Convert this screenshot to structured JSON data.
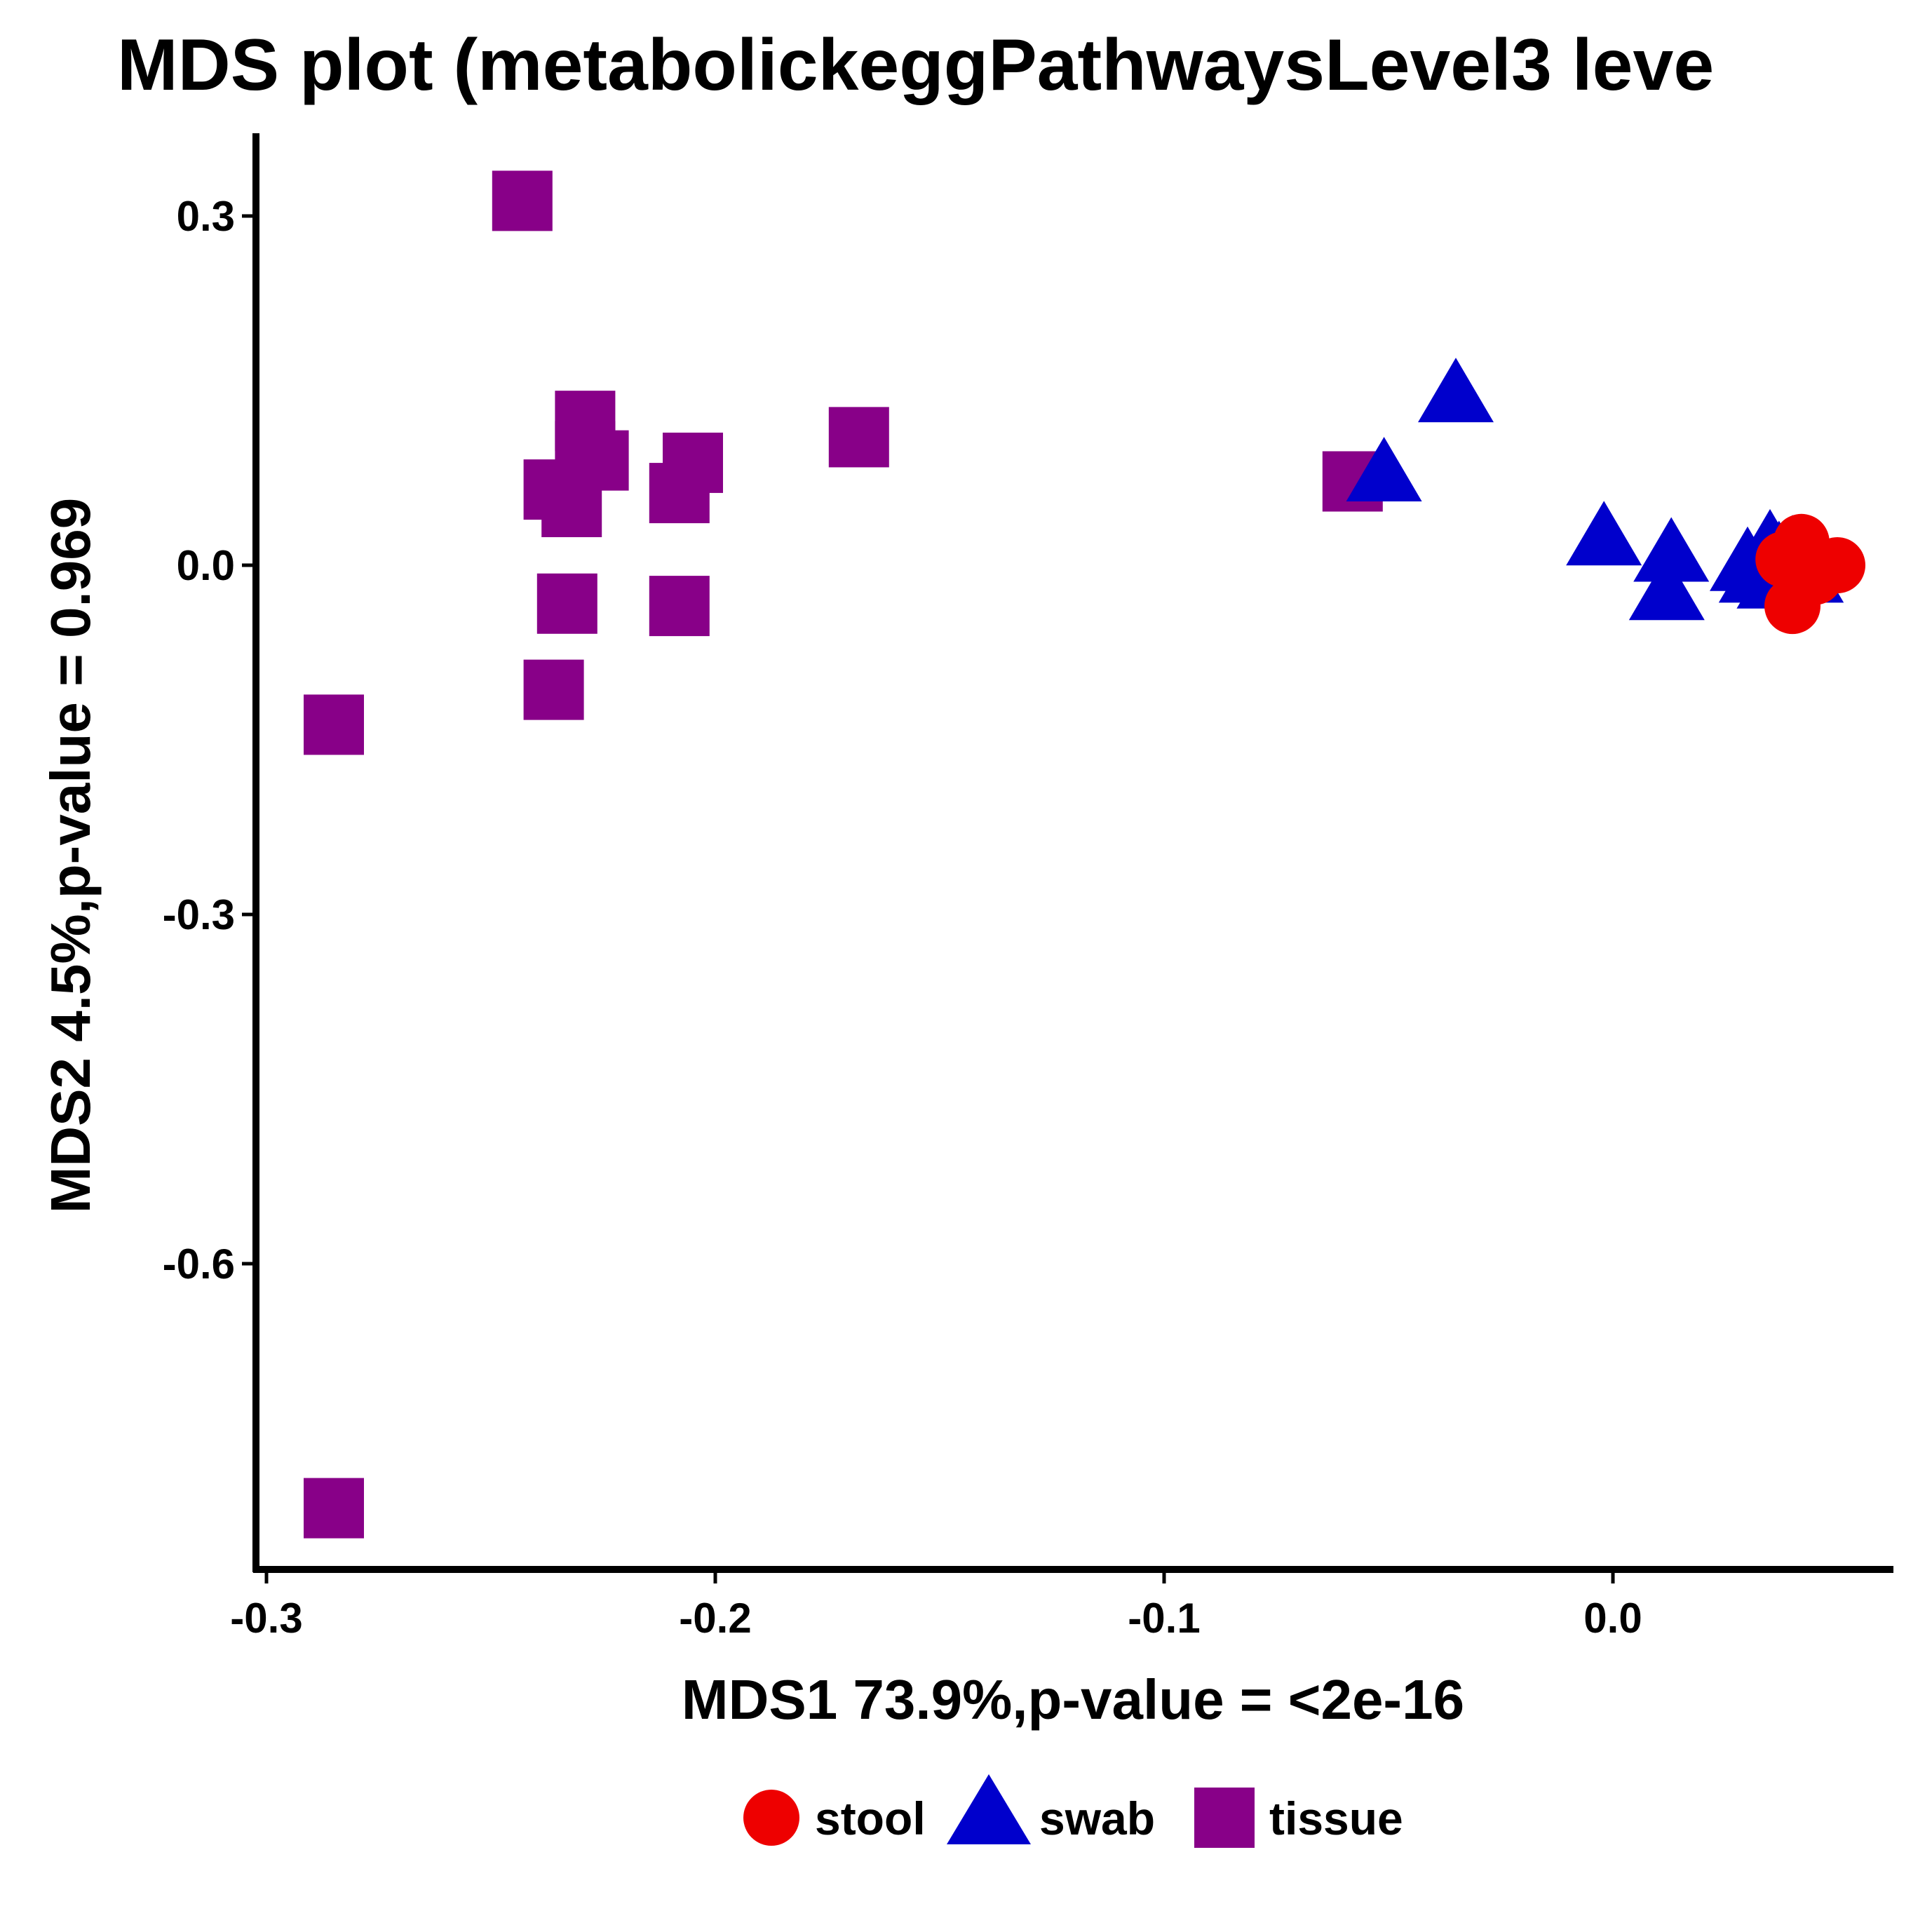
{
  "chart_data": {
    "type": "scatter",
    "title": "MDS plot (metabolickeggPathwaysLevel3 leve",
    "xlabel": "MDS1 73.9%,p-value = <2e-16",
    "ylabel": "MDS2 4.5%,p-value = 0.969",
    "xlim": [
      -0.3,
      0.065
    ],
    "ylim": [
      -0.86,
      0.37
    ],
    "x_ticks": [
      -0.3,
      -0.2,
      -0.1,
      0.0
    ],
    "x_tick_labels": [
      "-0.3",
      "-0.2",
      "-0.1",
      "0.0"
    ],
    "y_ticks": [
      0.3,
      0.0,
      -0.3,
      -0.6
    ],
    "y_tick_labels": [
      "0.3",
      "0.0",
      "-0.3",
      "-0.6"
    ],
    "grid": false,
    "legend_position": "bottom",
    "series": [
      {
        "name": "stool",
        "color": "#ee0000",
        "marker": "circle",
        "points": [
          [
            0.042,
            0.02
          ],
          [
            0.05,
            0.0
          ],
          [
            0.04,
            -0.035
          ],
          [
            0.045,
            -0.01
          ],
          [
            0.038,
            0.005
          ]
        ]
      },
      {
        "name": "swab",
        "color": "#0000cc",
        "marker": "triangle",
        "points": [
          [
            -0.035,
            0.145
          ],
          [
            -0.051,
            0.077
          ],
          [
            -0.002,
            0.022
          ],
          [
            0.013,
            0.008
          ],
          [
            0.012,
            -0.025
          ],
          [
            0.03,
            0.0
          ],
          [
            0.035,
            0.015
          ],
          [
            0.038,
            0.0
          ],
          [
            0.04,
            0.01
          ],
          [
            0.042,
            0.005
          ],
          [
            0.032,
            -0.01
          ],
          [
            0.036,
            -0.015
          ],
          [
            0.043,
            -0.01
          ],
          [
            0.037,
            0.005
          ],
          [
            0.041,
            -0.005
          ]
        ]
      },
      {
        "name": "tissue",
        "color": "#880088",
        "marker": "square",
        "points": [
          [
            -0.243,
            0.313
          ],
          [
            -0.229,
            0.124
          ],
          [
            -0.168,
            0.11
          ],
          [
            -0.229,
            0.098
          ],
          [
            -0.226,
            0.09
          ],
          [
            -0.236,
            0.065
          ],
          [
            -0.232,
            0.05
          ],
          [
            -0.205,
            0.088
          ],
          [
            -0.208,
            0.062
          ],
          [
            -0.233,
            -0.033
          ],
          [
            -0.208,
            -0.035
          ],
          [
            -0.236,
            -0.107
          ],
          [
            -0.285,
            -0.137
          ],
          [
            -0.285,
            -0.81
          ],
          [
            -0.058,
            0.072
          ]
        ]
      }
    ]
  }
}
